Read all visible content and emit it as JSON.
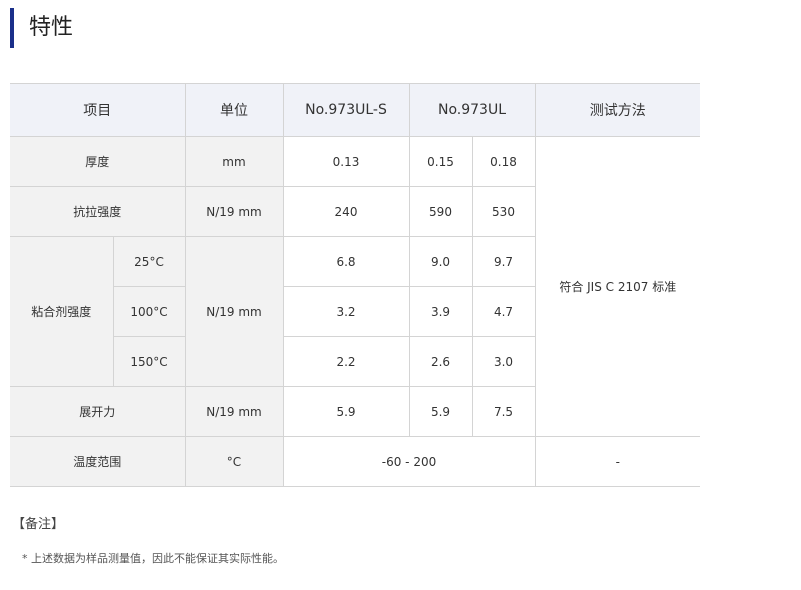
{
  "title": "特性",
  "table": {
    "headers": {
      "item": "项目",
      "unit": "单位",
      "s": "No.973UL-S",
      "ul": "No.973UL",
      "method": "测试方法"
    },
    "thickness": {
      "label": "厚度",
      "unit": "mm",
      "s": "0.13",
      "a": "0.15",
      "b": "0.18"
    },
    "tensile": {
      "label": "抗拉强度",
      "unit": "N/19 mm",
      "s": "240",
      "a": "590",
      "b": "530"
    },
    "adhesion": {
      "label": "粘合剂强度",
      "unit": "N/19 mm",
      "rows": [
        {
          "temp": "25°C",
          "s": "6.8",
          "a": "9.0",
          "b": "9.7"
        },
        {
          "temp": "100°C",
          "s": "3.2",
          "a": "3.9",
          "b": "4.7"
        },
        {
          "temp": "150°C",
          "s": "2.2",
          "a": "2.6",
          "b": "3.0"
        }
      ]
    },
    "unwind": {
      "label": "展开力",
      "unit": "N/19 mm",
      "s": "5.9",
      "a": "5.9",
      "b": "7.5"
    },
    "method": "符合 JIS C 2107 标准",
    "temperature": {
      "label": "温度范围",
      "unit": "°C",
      "value": "-60 - 200",
      "method": "-"
    }
  },
  "notes": {
    "title": "【备注】",
    "text": "* 上述数据为样品测量值，因此不能保证其实际性能。"
  }
}
